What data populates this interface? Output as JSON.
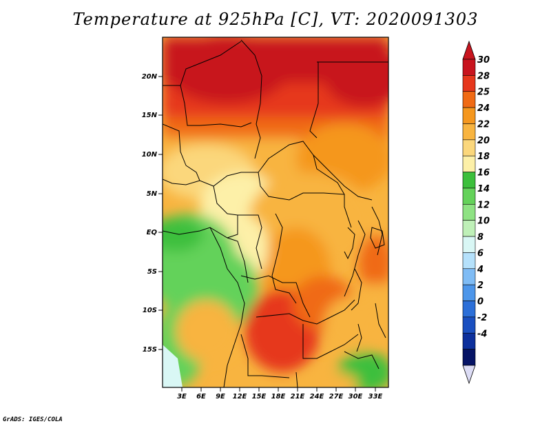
{
  "title": "Temperature at 925hPa [C], VT: 2020091303",
  "credit": "GrADS: IGES/COLA",
  "map": {
    "lat_labels": [
      "20N",
      "15N",
      "10N",
      "5N",
      "EQ",
      "5S",
      "10S",
      "15S"
    ],
    "lon_labels": [
      "3E",
      "6E",
      "9E",
      "12E",
      "15E",
      "18E",
      "21E",
      "24E",
      "27E",
      "30E",
      "33E"
    ],
    "lon_range": [
      0,
      35
    ],
    "lat_range": [
      -20,
      24
    ]
  },
  "colorbar": {
    "labels": [
      "30",
      "28",
      "25",
      "24",
      "22",
      "20",
      "18",
      "16",
      "14",
      "12",
      "10",
      "8",
      "6",
      "4",
      "2",
      "0",
      "-2",
      "-4"
    ],
    "colors": [
      "#c8141e",
      "#e6371c",
      "#f06a14",
      "#f5971e",
      "#f8b440",
      "#fbd77c",
      "#fdf0a8",
      "#3cbf3c",
      "#64d25a",
      "#8ee283",
      "#bff0b8",
      "#d9f7f5",
      "#b5e1fb",
      "#7fbcf5",
      "#4d96ea",
      "#2c6fd8",
      "#1a4fc0",
      "#0c2f9c",
      "#061466"
    ],
    "top_arrow_color": "#c8141e",
    "bottom_arrow_color": "#dcdcf5"
  }
}
